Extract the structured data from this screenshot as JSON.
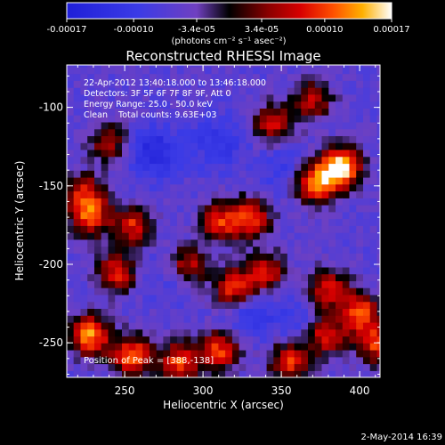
{
  "chart_data": {
    "type": "heatmap",
    "title": "Reconstructed RHESSI Image",
    "xlabel": "Heliocentric X (arcsec)",
    "ylabel": "Heliocentric Y (arcsec)",
    "xlim": [
      213,
      413
    ],
    "ylim": [
      -272,
      -73
    ],
    "x_ticks": [
      250,
      300,
      350,
      400
    ],
    "y_ticks": [
      -100,
      -150,
      -200,
      -250
    ],
    "grid": false,
    "colorbar": {
      "position": "top",
      "range": [
        -0.00017,
        0.00017
      ],
      "ticks": [
        "-0.00017",
        "-0.00010",
        "-3.4e-05",
        "3.4e-05",
        "0.00010",
        "0.00017"
      ],
      "label": "(photons cm⁻² s⁻¹ asec⁻²)"
    },
    "annotations": [
      "22-Apr-2012 13:40:18.000 to 13:46:18.000",
      "Detectors: 3F 5F 6F 7F 8F 9F, Att 0",
      "Energy Range: 25.0 - 50.0 keV",
      "Clean    Total counts: 9.63E+03"
    ],
    "peak_label": "Position of Peak = [388,-138]",
    "peak": [
      388,
      -138
    ],
    "sources": [
      {
        "x": 388,
        "y": -138,
        "value": 0.00017
      },
      {
        "x": 372,
        "y": -148,
        "value": 0.00012
      },
      {
        "x": 330,
        "y": -170,
        "value": 0.0001
      },
      {
        "x": 310,
        "y": -173,
        "value": 8e-05
      },
      {
        "x": 255,
        "y": -175,
        "value": 8e-05
      },
      {
        "x": 228,
        "y": -170,
        "value": 8e-05
      },
      {
        "x": 225,
        "y": -155,
        "value": 7e-05
      },
      {
        "x": 245,
        "y": -205,
        "value": 8e-05
      },
      {
        "x": 290,
        "y": -200,
        "value": 8e-05
      },
      {
        "x": 320,
        "y": -215,
        "value": 0.0001
      },
      {
        "x": 340,
        "y": -205,
        "value": 7e-05
      },
      {
        "x": 380,
        "y": -215,
        "value": 8e-05
      },
      {
        "x": 400,
        "y": -230,
        "value": 0.0001
      },
      {
        "x": 410,
        "y": -250,
        "value": 9e-05
      },
      {
        "x": 228,
        "y": -245,
        "value": 0.00013
      },
      {
        "x": 255,
        "y": -258,
        "value": 0.00012
      },
      {
        "x": 285,
        "y": -262,
        "value": 0.0001
      },
      {
        "x": 310,
        "y": -255,
        "value": 0.0001
      },
      {
        "x": 355,
        "y": -262,
        "value": 9e-05
      },
      {
        "x": 378,
        "y": -245,
        "value": 8e-05
      },
      {
        "x": 345,
        "y": -110,
        "value": 7e-05
      },
      {
        "x": 370,
        "y": -95,
        "value": 6e-05
      },
      {
        "x": 240,
        "y": -122,
        "value": 5e-05
      }
    ],
    "sinks": [
      {
        "x": 268,
        "y": -128,
        "value": -0.00015
      },
      {
        "x": 310,
        "y": -122,
        "value": -0.00012
      },
      {
        "x": 350,
        "y": -138,
        "value": -0.0001
      },
      {
        "x": 280,
        "y": -205,
        "value": -0.0001
      },
      {
        "x": 330,
        "y": -230,
        "value": -0.00012
      },
      {
        "x": 360,
        "y": -235,
        "value": -0.0001
      },
      {
        "x": 252,
        "y": -232,
        "value": -6e-05
      },
      {
        "x": 300,
        "y": -182,
        "value": -7e-05
      }
    ]
  },
  "footer_date": "2-May-2014 16:39"
}
